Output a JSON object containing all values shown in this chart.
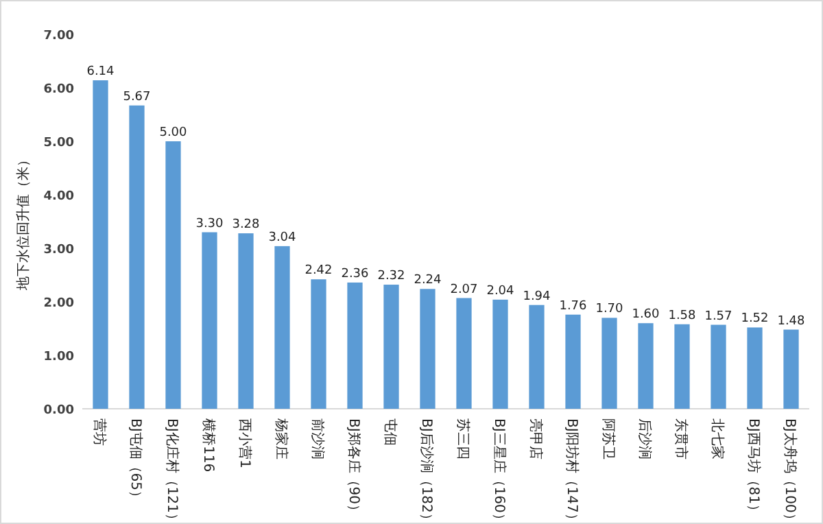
{
  "chart_data": {
    "type": "bar",
    "ylabel": "地下水位回升值（米）",
    "categories": [
      "营坊",
      "BJ屯佃（65）",
      "BJ化庄村（121）",
      "横桥116",
      "西小营1",
      "杨家庄",
      "前沙涧",
      "BJ郑各庄（90）",
      "屯佃",
      "BJ后沙涧（182）",
      "苏三四",
      "BJ三星庄（160）",
      "亮甲店",
      "BJ阳坊村（147）",
      "阿苏卫",
      "后沙涧",
      "东贯市",
      "北七家",
      "BJ西马坊（81）",
      "BJ太舟坞（100）"
    ],
    "values": [
      6.14,
      5.67,
      5.0,
      3.3,
      3.28,
      3.04,
      2.42,
      2.36,
      2.32,
      2.24,
      2.07,
      2.04,
      1.94,
      1.76,
      1.7,
      1.6,
      1.58,
      1.57,
      1.52,
      1.48
    ],
    "value_labels": [
      "6.14",
      "5.67",
      "5.00",
      "3.30",
      "3.28",
      "3.04",
      "2.42",
      "2.36",
      "2.32",
      "2.24",
      "2.07",
      "2.04",
      "1.94",
      "1.76",
      "1.70",
      "1.60",
      "1.58",
      "1.57",
      "1.52",
      "1.48"
    ],
    "color": "#5b9bd5",
    "ylim": [
      0,
      7
    ],
    "yticks": [
      {
        "value": 0,
        "label": "0.00"
      },
      {
        "value": 1,
        "label": "1.00"
      },
      {
        "value": 2,
        "label": "2.00"
      },
      {
        "value": 3,
        "label": "3.00"
      },
      {
        "value": 4,
        "label": "4.00"
      },
      {
        "value": 5,
        "label": "5.00"
      },
      {
        "value": 6,
        "label": "6.00"
      },
      {
        "value": 7,
        "label": "7.00"
      }
    ]
  }
}
